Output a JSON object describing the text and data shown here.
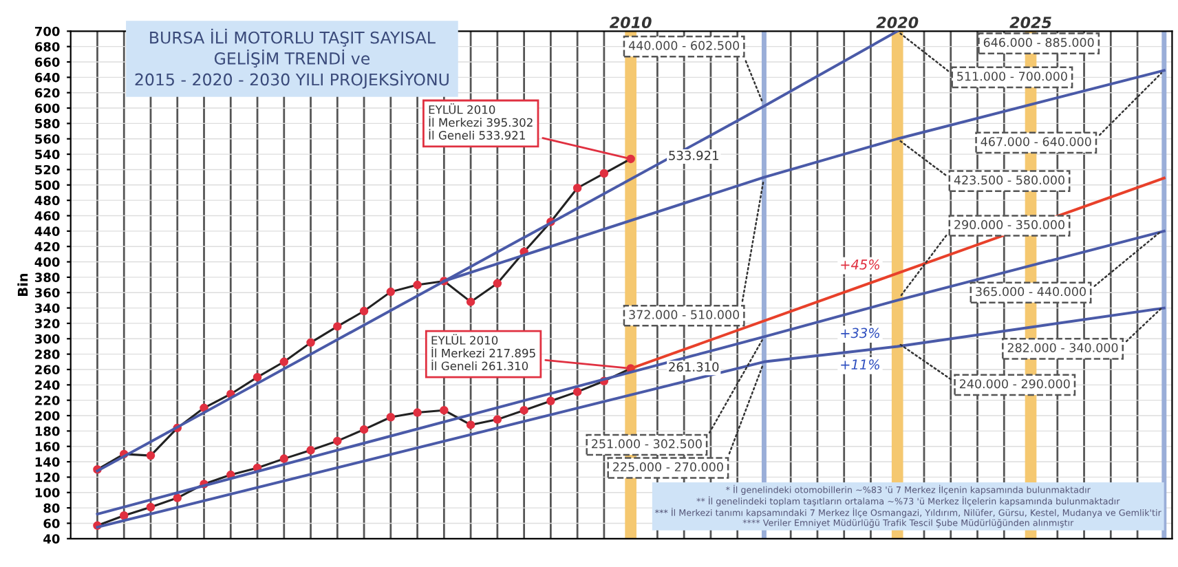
{
  "chart_data": {
    "type": "line",
    "title": "BURSA İLİ MOTORLU TAŞIT SAYISAL\nGELİŞİM TRENDİ ve\n2015 - 2020 - 2030 YILI PROJEKSİYONU",
    "ylabel": "Bin",
    "series": [
      {
        "x": [
          1990,
          1991,
          1992,
          1993,
          1994,
          1995,
          1996,
          1997,
          1998,
          1999,
          2000,
          2001,
          2002,
          2003,
          2004,
          2005,
          2006,
          2007,
          2008,
          2009,
          2010
        ],
        "values": [
          130,
          150,
          148,
          184,
          210,
          228,
          250,
          270,
          295,
          316,
          336,
          361,
          370,
          375,
          348,
          372,
          413,
          452,
          496,
          515,
          533.921
        ],
        "color": "#e03040",
        "marker": "circle"
      },
      {
        "x": [
          1990,
          1991,
          1992,
          1993,
          1994,
          1995,
          1996,
          1997,
          1998,
          1999,
          2000,
          2001,
          2002,
          2003,
          2004,
          2005,
          2006,
          2007,
          2008,
          2009,
          2010
        ],
        "values": [
          57,
          70,
          81,
          93,
          111,
          123,
          132,
          144,
          155,
          167,
          182,
          198,
          204,
          207,
          188,
          195,
          207,
          219,
          231,
          245,
          261.31
        ],
        "color": "#e03040",
        "marker": "circle"
      },
      {
        "x": [
          1990,
          2015,
          2020
        ],
        "values": [
          128,
          602.5,
          700
        ],
        "color": "#4a5aa8"
      },
      {
        "x": [
          2003,
          2015,
          2020,
          2030
        ],
        "values": [
          375,
          510,
          560,
          649
        ],
        "color": "#4a5aa8"
      },
      {
        "x": [
          1990,
          2015,
          2020,
          2030
        ],
        "values": [
          72,
          302.5,
          350,
          440
        ],
        "color": "#4a5aa8"
      },
      {
        "x": [
          1990,
          2015,
          2020,
          2030
        ],
        "values": [
          55,
          270,
          290,
          340
        ],
        "color": "#4a5aa8"
      },
      {
        "x": [
          2010,
          2030
        ],
        "values": [
          261.31,
          509
        ],
        "color": "#e8402a"
      }
    ],
    "xlim": [
      1989,
      2030.3
    ],
    "xticks": [
      {
        "value": 1990,
        "label": null
      },
      {
        "value": 1991,
        "label": null
      },
      {
        "value": 1992,
        "label": null
      },
      {
        "value": 1993,
        "label": null
      },
      {
        "value": 1994,
        "label": null
      },
      {
        "value": 1995,
        "label": null
      },
      {
        "value": 1996,
        "label": null
      },
      {
        "value": 1997,
        "label": null
      },
      {
        "value": 1998,
        "label": null
      },
      {
        "value": 1999,
        "label": null
      },
      {
        "value": 2000,
        "label": null
      },
      {
        "value": 2001,
        "label": null
      },
      {
        "value": 2002,
        "label": null
      },
      {
        "value": 2003,
        "label": null
      },
      {
        "value": 2004,
        "label": null
      },
      {
        "value": 2005,
        "label": null
      },
      {
        "value": 2006,
        "label": null
      },
      {
        "value": 2007,
        "label": null
      },
      {
        "value": 2008,
        "label": null
      },
      {
        "value": 2009,
        "label": null
      },
      {
        "value": 2011,
        "label": null
      },
      {
        "value": 2012,
        "label": null
      },
      {
        "value": 2013,
        "label": null
      },
      {
        "value": 2014,
        "label": null
      },
      {
        "value": 2016,
        "label": null
      },
      {
        "value": 2017,
        "label": null
      },
      {
        "value": 2018,
        "label": null
      },
      {
        "value": 2019,
        "label": null
      },
      {
        "value": 2021,
        "label": null
      },
      {
        "value": 2022,
        "label": null
      },
      {
        "value": 2023,
        "label": null
      },
      {
        "value": 2024,
        "label": null
      },
      {
        "value": 2026,
        "label": null
      },
      {
        "value": 2027,
        "label": null
      },
      {
        "value": 2028,
        "label": null
      },
      {
        "value": 2029,
        "label": null
      }
    ],
    "ylim": [
      40,
      700
    ],
    "yticks": [
      40,
      60,
      80,
      100,
      120,
      140,
      160,
      180,
      200,
      220,
      240,
      260,
      280,
      300,
      320,
      340,
      360,
      380,
      400,
      420,
      440,
      460,
      480,
      500,
      520,
      540,
      560,
      580,
      600,
      620,
      640,
      660,
      680,
      700
    ],
    "tick_labels": "y",
    "grid": true,
    "marker": "none",
    "line_style": "solid",
    "ref_lines": [
      {
        "axis": "x",
        "value": 2010,
        "label": "2010",
        "color": "#f5c870"
      },
      {
        "axis": "x",
        "value": 2020,
        "label": "2020",
        "color": "#f5c870"
      },
      {
        "axis": "x",
        "value": 2025,
        "label": "2025",
        "color": "#f5c870"
      },
      {
        "axis": "x",
        "value": 2015,
        "label": null,
        "color": "#9aaed8"
      },
      {
        "axis": "x",
        "value": 2030,
        "label": null,
        "color": "#9aaed8"
      }
    ],
    "annotations": [
      {
        "text": "440.000 - 602.500",
        "x": 2015,
        "y": 602.5
      },
      {
        "text": "372.000 - 510.000",
        "x": 2015,
        "y": 510
      },
      {
        "text": "251.000 - 302.500",
        "x": 2015,
        "y": 302.5
      },
      {
        "text": "225.000 - 270.000",
        "x": 2015,
        "y": 270
      },
      "646.000 - 885.000",
      {
        "text": "511.000 - 700.000",
        "x": 2020,
        "y": 700
      },
      {
        "text": "467.000 - 640.000",
        "x": 2030,
        "y": 649
      },
      {
        "text": "423.500 - 580.000",
        "x": 2020,
        "y": 560
      },
      {
        "text": "290.000 - 350.000",
        "x": 2020,
        "y": 350
      },
      {
        "text": "365.000 - 440.000",
        "x": 2030,
        "y": 443
      },
      {
        "text": "282.000 - 340.000",
        "x": 2030,
        "y": 343
      },
      {
        "text": "240.000 - 290.000",
        "x": 2020,
        "y": 295
      },
      {
        "text": "EYLÜL 2010\nİl Merkezi 395.302\nİl Geneli 533.921",
        "x": 2010,
        "y": 533.921
      },
      {
        "text": "EYLÜL 2010\nİl Merkezi 217.895\nİl Geneli 261.310",
        "x": 2010,
        "y": 261.31
      },
      "533.921",
      "261.310",
      "+45%",
      "+33%",
      "+11%",
      "* İl genelindeki otomobillerin ~%83 'ü 7 Merkez İlçenin kapsamında bulunmaktadır\n** İl genelindeki toplam taşıtların ortalama ~%73 'ü Merkez İlçelerin kapsamında bulunmaktadır\n*** İl Merkezi tanımı kapsamındaki 7 Merkez İlçe Osmangazi, Yıldırım, Nilüfer, Gürsu, Kestel, Mudanya ve Gemlik'tir\n**** Veriler Emniyet Müdürlüğü Trafik Tescil Şube Müdürlüğünden alınmıştır"
    ]
  }
}
